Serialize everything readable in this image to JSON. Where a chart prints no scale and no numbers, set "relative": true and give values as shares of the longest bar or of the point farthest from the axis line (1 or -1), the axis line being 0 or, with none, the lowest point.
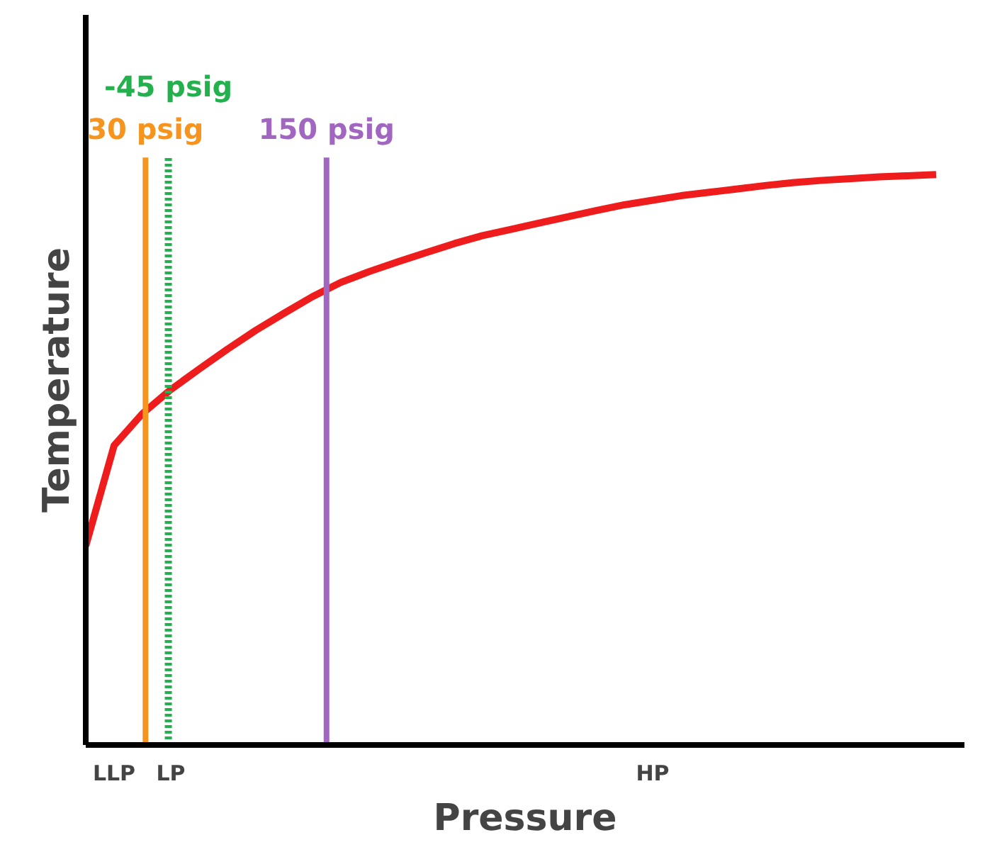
{
  "chart_data": {
    "type": "line",
    "relative": true,
    "xlabel": "Pressure",
    "ylabel": "Temperature",
    "categories": [
      null,
      "LLP",
      null,
      "LP",
      null,
      null,
      null,
      null,
      null,
      null,
      null,
      null,
      null,
      null,
      null,
      null,
      null,
      null,
      null,
      null,
      "HP",
      null,
      null,
      null,
      null,
      null,
      null,
      null,
      null,
      null,
      null,
      null
    ],
    "series": [
      {
        "color": "#ee1c1c",
        "values": [
          0.349,
          0.525,
          0.581,
          0.623,
          0.659,
          0.694,
          0.727,
          0.757,
          0.786,
          0.811,
          0.83,
          0.847,
          0.863,
          0.879,
          0.893,
          0.904,
          0.915,
          0.926,
          0.937,
          0.947,
          0.955,
          0.963,
          0.969,
          0.975,
          0.981,
          0.986,
          0.99,
          0.993,
          0.996,
          0.998,
          1.0,
          null
        ]
      }
    ],
    "ref_lines": [
      {
        "axis": "x",
        "label": "30 psig",
        "color": "#f7941d",
        "line_style": "solid"
      },
      {
        "axis": "x",
        "label": "-45 psig",
        "color": "#22b14c",
        "line_style": "dotted"
      },
      {
        "axis": "x",
        "label": "150 psig",
        "color": "#a066c0",
        "line_style": "solid"
      }
    ],
    "tick_labels": "x",
    "grid": false,
    "marker": "none",
    "line_style": "solid"
  }
}
